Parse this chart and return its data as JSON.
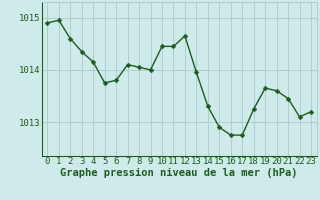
{
  "hours": [
    0,
    1,
    2,
    3,
    4,
    5,
    6,
    7,
    8,
    9,
    10,
    11,
    12,
    13,
    14,
    15,
    16,
    17,
    18,
    19,
    20,
    21,
    22,
    23
  ],
  "pressure": [
    1014.9,
    1014.95,
    1014.6,
    1014.35,
    1014.15,
    1013.75,
    1013.8,
    1014.1,
    1014.05,
    1014.0,
    1014.45,
    1014.45,
    1014.65,
    1013.95,
    1013.3,
    1012.9,
    1012.75,
    1012.75,
    1013.25,
    1013.65,
    1013.6,
    1013.45,
    1013.1,
    1013.2
  ],
  "line_color": "#1e5c1e",
  "marker": "D",
  "marker_size": 2.5,
  "bg_color": "#ceeaea",
  "grid_color": "#aacaca",
  "axis_color": "#1e5c1e",
  "tick_color": "#1e5c1e",
  "ylabel_ticks": [
    1013,
    1014,
    1015
  ],
  "ylim": [
    1012.35,
    1015.3
  ],
  "xlim": [
    -0.5,
    23.5
  ],
  "xlabel": "Graphe pression niveau de la mer (hPa)",
  "xlabel_fontsize": 7.5,
  "tick_fontsize": 6.5
}
